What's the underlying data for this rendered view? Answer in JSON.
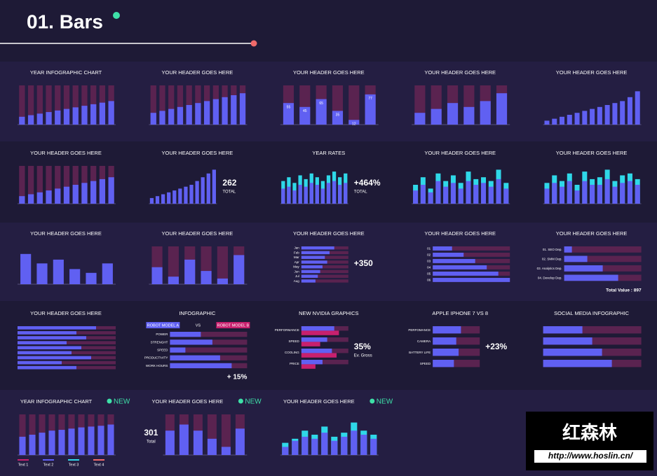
{
  "header": {
    "title": "01. Bars"
  },
  "panels": [
    {
      "title": "YEAR INFOGRAPHIC CHART",
      "kind": "column",
      "values": [
        20,
        24,
        28,
        32,
        36,
        40,
        44,
        48,
        52,
        56,
        60
      ]
    },
    {
      "title": "YOUR HEADER GOES HERE",
      "kind": "column",
      "values": [
        30,
        35,
        40,
        45,
        50,
        55,
        60,
        65,
        70,
        75,
        80
      ]
    },
    {
      "title": "YOUR HEADER GOES HERE",
      "kind": "column",
      "values": [
        55,
        45,
        65,
        35,
        12,
        77
      ],
      "show_values": true
    },
    {
      "title": "YOUR HEADER GOES HERE",
      "kind": "column",
      "values": [
        30,
        40,
        55,
        45,
        60,
        80
      ]
    },
    {
      "title": "YOUR HEADER GOES HERE",
      "kind": "bar",
      "values": [
        10,
        15,
        20,
        25,
        30,
        35,
        40,
        45,
        50,
        55,
        60,
        70,
        85
      ]
    },
    {
      "title": "YOUR HEADER GOES HERE",
      "kind": "column",
      "values": [
        20,
        25,
        30,
        35,
        40,
        45,
        50,
        55,
        60,
        65,
        70
      ]
    },
    {
      "title": "YOUR HEADER GOES HERE",
      "kind": "bar",
      "values": [
        15,
        20,
        25,
        30,
        35,
        40,
        45,
        50,
        60,
        70,
        80,
        90
      ],
      "big": [
        "262",
        "TOTAL"
      ]
    },
    {
      "title": "YEAR RATES",
      "kind": "pair",
      "values": [
        60,
        70,
        55,
        75,
        65,
        80,
        70,
        60,
        75,
        85,
        70,
        80
      ],
      "values2": [
        40,
        45,
        35,
        50,
        45,
        55,
        50,
        40,
        55,
        60,
        50,
        55
      ],
      "big": [
        "+464%",
        "TOTAL"
      ]
    },
    {
      "title": "YOUR HEADER GOES HERE",
      "kind": "pair",
      "values": [
        50,
        70,
        40,
        80,
        60,
        75,
        55,
        85,
        65,
        70,
        60,
        90,
        55
      ],
      "values2": [
        35,
        50,
        30,
        60,
        45,
        55,
        40,
        60,
        50,
        55,
        45,
        65,
        40
      ]
    },
    {
      "title": "YOUR HEADER GOES HERE",
      "kind": "pair",
      "values": [
        55,
        75,
        60,
        80,
        50,
        85,
        65,
        70,
        90,
        60,
        75,
        80,
        65
      ],
      "values2": [
        40,
        55,
        45,
        60,
        35,
        60,
        50,
        50,
        65,
        45,
        55,
        60,
        50
      ]
    },
    {
      "title": "YOUR HEADER GOES HERE",
      "kind": "bar",
      "values": [
        80,
        55,
        65,
        40,
        30,
        55
      ]
    },
    {
      "title": "YOUR HEADER GOES HERE",
      "kind": "column",
      "values": [
        45,
        20,
        65,
        35,
        15,
        77
      ]
    },
    {
      "title": "YOUR HEADER GOES HERE",
      "kind": "hbar",
      "labels": [
        "Jan",
        "Feb",
        "Mar",
        "Apr",
        "May",
        "Jun",
        "Jul",
        "Aug"
      ],
      "values": [
        70,
        60,
        50,
        55,
        45,
        40,
        35,
        30
      ],
      "big": [
        "+350"
      ]
    },
    {
      "title": "YOUR HEADER GOES HERE",
      "kind": "hbar",
      "labels": [
        "01",
        "02",
        "03",
        "04",
        "05",
        "06"
      ],
      "values": [
        25,
        40,
        55,
        70,
        85,
        100
      ]
    },
    {
      "title": "YOUR HEADER GOES HERE",
      "kind": "hbar",
      "labels": [
        "01. SEO Dep.",
        "02. SMM Dep.",
        "03. Analytics Dep.",
        "04. Develop Dep."
      ],
      "values": [
        10,
        30,
        50,
        70
      ],
      "footer": "Total Value : 897"
    },
    {
      "title": "YOUR HEADER GOES HERE",
      "kind": "hbar",
      "values": [
        80,
        60,
        70,
        50,
        65,
        55,
        75,
        45,
        60
      ]
    },
    {
      "title": "INFOGRAPHIC",
      "kind": "hbar",
      "tags": [
        "ROBOT MODEL A",
        "VS",
        "ROBOT MODEL B"
      ],
      "labels": [
        "POWER",
        "STRENGHT",
        "SPEED",
        "PRODUCTIVITY",
        "WORK HOURS"
      ],
      "values": [
        40,
        55,
        20,
        65,
        80
      ],
      "footer": "+ 15%"
    },
    {
      "title": "NEW NVIDIA GRAPHICS",
      "kind": "hbar",
      "labels": [
        "PERFORMANCE",
        "SPEED",
        "COOLING",
        "PRICE"
      ],
      "values": [
        70,
        55,
        65,
        45
      ],
      "values2": [
        80,
        40,
        75,
        30
      ],
      "big": [
        "35%",
        "Ev. Gross"
      ]
    },
    {
      "title": "APPLE IPHONE 7 VS 8",
      "kind": "hbar",
      "labels": [
        "PERFOMANCE",
        "CAMERA",
        "BATTERY LIFE",
        "SPEED"
      ],
      "values": [
        60,
        50,
        55,
        45
      ],
      "big": [
        "+23%"
      ]
    },
    {
      "title": "SOCIAL MEDIA INFOGRAPHIC",
      "kind": "hbar",
      "values": [
        40,
        50,
        60,
        70
      ]
    },
    {
      "title": "YEAR INFOGRAPHIC CHART",
      "badge": "NEW",
      "kind": "column",
      "values": [
        45,
        50,
        55,
        60,
        62,
        65,
        68,
        70,
        72,
        75
      ],
      "legend": [
        "Text 1",
        "Text 2",
        "Text 3",
        "Text 4"
      ]
    },
    {
      "title": "YOUR HEADER GOES HERE",
      "badge": "NEW",
      "kind": "column",
      "values": [
        60,
        75,
        60,
        40,
        20,
        65
      ],
      "big": [
        "301",
        "Total"
      ],
      "big_left": true
    },
    {
      "title": "YOUR HEADER GOES HERE",
      "badge": "NEW",
      "kind": "pair",
      "values": [
        30,
        40,
        60,
        50,
        70,
        45,
        55,
        80,
        60,
        50
      ],
      "values2": [
        20,
        35,
        45,
        40,
        55,
        35,
        45,
        60,
        50,
        40
      ]
    }
  ],
  "watermark": {
    "name": "红森林",
    "url": "http://www.hoslin.cn/"
  }
}
